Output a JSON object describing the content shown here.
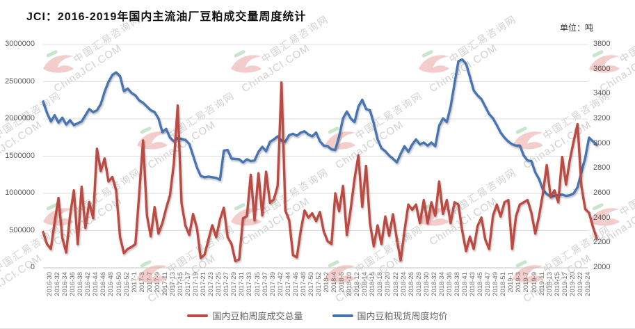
{
  "header": {
    "title": "JCI：2016-2019年国内主流油厂豆粕成交量周度统计",
    "unit_label": "单位：吨"
  },
  "legend": [
    {
      "label": "国内豆粕周度成交总量",
      "color": "#bb4b43"
    },
    {
      "label": "国内豆粕现货周度均价",
      "color": "#4675b2"
    }
  ],
  "watermark": {
    "line1": "中国汇易咨询网",
    "line2": "ChinaJCI.COM"
  },
  "colors": {
    "volume_line": "#bb4b43",
    "price_line": "#4675b2",
    "gridline": "#dcdcdc",
    "baseline": "#c2c2c2",
    "axis_text": "#595959",
    "watermark_red": "rgba(214,88,82,0.30)",
    "watermark_green": "rgba(130,200,145,0.45)"
  },
  "chart_data": {
    "type": "line",
    "title": "JCI：2016-2019年国内主流油厂豆粕成交量周度统计",
    "unit": "吨",
    "grid": "horizontal",
    "legend_position": "bottom",
    "left_axis": {
      "min": 0,
      "max": 3000000,
      "step": 500000,
      "ticks": [
        "3000000",
        "2500000",
        "2000000",
        "1500000",
        "1000000",
        "500000",
        "0"
      ]
    },
    "right_axis": {
      "min": 2000,
      "max": 3800,
      "step": 200,
      "ticks": [
        "3800",
        "3600",
        "3400",
        "3200",
        "3000",
        "2800",
        "2600",
        "2400",
        "2200",
        "2000"
      ]
    },
    "x_tick_labels": [
      "2016-30",
      "2016-32",
      "2016-34",
      "2016-36",
      "2016-38",
      "2016-42",
      "2016-44",
      "2016-46",
      "2016-48",
      "2016-50",
      "2016-52",
      "2017-1",
      "2017-3",
      "2017-7",
      "2017-9",
      "2017-11",
      "2017-13",
      "2017-15",
      "2017-17",
      "2017-19",
      "2017-21",
      "2017-23",
      "2017-25",
      "2017-27",
      "2017-29",
      "2017-31",
      "2017-33",
      "2017-35",
      "2017-37",
      "2017-39",
      "2017-42",
      "2017-44",
      "2017-46",
      "2017-48",
      "2017-50",
      "2017-52",
      "2018-2",
      "2018-4",
      "2018-6",
      "2018-10",
      "2018-12",
      "2018-14",
      "2018-16",
      "2018-18",
      "2018-20",
      "2018-22",
      "2018-24",
      "2018-26",
      "2018-28",
      "2018-30",
      "2018-32",
      "2018-34",
      "2018-36",
      "2018-38",
      "2018-41",
      "2018-43",
      "2018-45",
      "2018-47",
      "2018-49",
      "2018-51",
      "2019-1",
      "2019-3",
      "2019-7",
      "2019-9",
      "2019-11",
      "2019-13",
      "2019-15",
      "2019-17",
      "2019-20",
      "2019-22",
      "2019-24"
    ],
    "series": [
      {
        "name": "国内豆粕周度成交总量",
        "axis": "left",
        "color": "#bb4b43",
        "values": [
          480000,
          320000,
          253000,
          620000,
          938000,
          400000,
          206000,
          700000,
          1040000,
          319000,
          1090000,
          535000,
          882000,
          666000,
          1600000,
          1300000,
          1470000,
          1160000,
          1220000,
          1040000,
          413000,
          197000,
          253000,
          280000,
          319000,
          1000000,
          1710000,
          700000,
          422000,
          816000,
          460000,
          600000,
          800000,
          975000,
          1400000,
          2180000,
          870000,
          572000,
          441000,
          722000,
          535000,
          131000,
          178000,
          380000,
          572000,
          413000,
          650000,
          807000,
          413000,
          319000,
          90000,
          112000,
          666000,
          694000,
          1250000,
          638000,
          1270000,
          704000,
          1290000,
          873000,
          920000,
          1100000,
          2490000,
          769000,
          638000,
          169000,
          141000,
          500000,
          769000,
          675000,
          732000,
          628000,
          750000,
          488000,
          356000,
          320000,
          1000000,
          760000,
          1100000,
          440000,
          790000,
          1200000,
          1510000,
          820000,
          1370000,
          600000,
          290000,
          570000,
          320000,
          690000,
          430000,
          720000,
          380000,
          100000,
          500000,
          850000,
          780000,
          850000,
          600000,
          910000,
          600000,
          880000,
          700000,
          1160000,
          725000,
          910000,
          600000,
          880000,
          850000,
          500000,
          225000,
          420000,
          253000,
          560000,
          675000,
          380000,
          253000,
          700000,
          850000,
          690000,
          880000,
          910000,
          255000,
          695000,
          850000,
          880000,
          910000,
          740000,
          460000,
          700000,
          1000000,
          1380000,
          950000,
          1040000,
          880000,
          1490000,
          1120000,
          1450000,
          1700000,
          1930000,
          1100000,
          790000,
          740000,
          550000,
          395000
        ]
      },
      {
        "name": "国内豆粕现货周度均价",
        "axis": "right",
        "color": "#4675b2",
        "values": [
          3340,
          3250,
          3180,
          3230,
          3170,
          3210,
          3155,
          3190,
          3150,
          3165,
          3180,
          3230,
          3280,
          3255,
          3270,
          3320,
          3420,
          3500,
          3555,
          3575,
          3545,
          3425,
          3445,
          3410,
          3390,
          3350,
          3330,
          3300,
          3270,
          3255,
          3205,
          3095,
          3120,
          3050,
          3020,
          3045,
          3040,
          3030,
          3000,
          2905,
          2810,
          2740,
          2730,
          2735,
          2730,
          2725,
          2710,
          2945,
          2950,
          2880,
          2878,
          2875,
          2850,
          2875,
          2860,
          2865,
          2935,
          2975,
          2940,
          3015,
          3035,
          3060,
          3025,
          3018,
          3070,
          3080,
          3065,
          3090,
          3100,
          3075,
          3060,
          3090,
          3020,
          2985,
          2980,
          2955,
          2950,
          3060,
          3205,
          3260,
          3205,
          3175,
          3300,
          3355,
          3280,
          3270,
          3165,
          3035,
          2965,
          2940,
          2905,
          2880,
          2850,
          2920,
          2980,
          2935,
          2995,
          3035,
          2995,
          3010,
          2985,
          3010,
          2980,
          3145,
          3205,
          3175,
          3300,
          3485,
          3665,
          3680,
          3645,
          3540,
          3430,
          3390,
          3360,
          3300,
          3240,
          3205,
          3150,
          3090,
          3050,
          3018,
          2996,
          2985,
          2985,
          2905,
          2865,
          2860,
          2770,
          2715,
          2630,
          2595,
          2575,
          2580,
          2585,
          2590,
          2580,
          2585,
          2600,
          2650,
          2770,
          2885,
          3050,
          3020,
          2990
        ]
      }
    ]
  }
}
